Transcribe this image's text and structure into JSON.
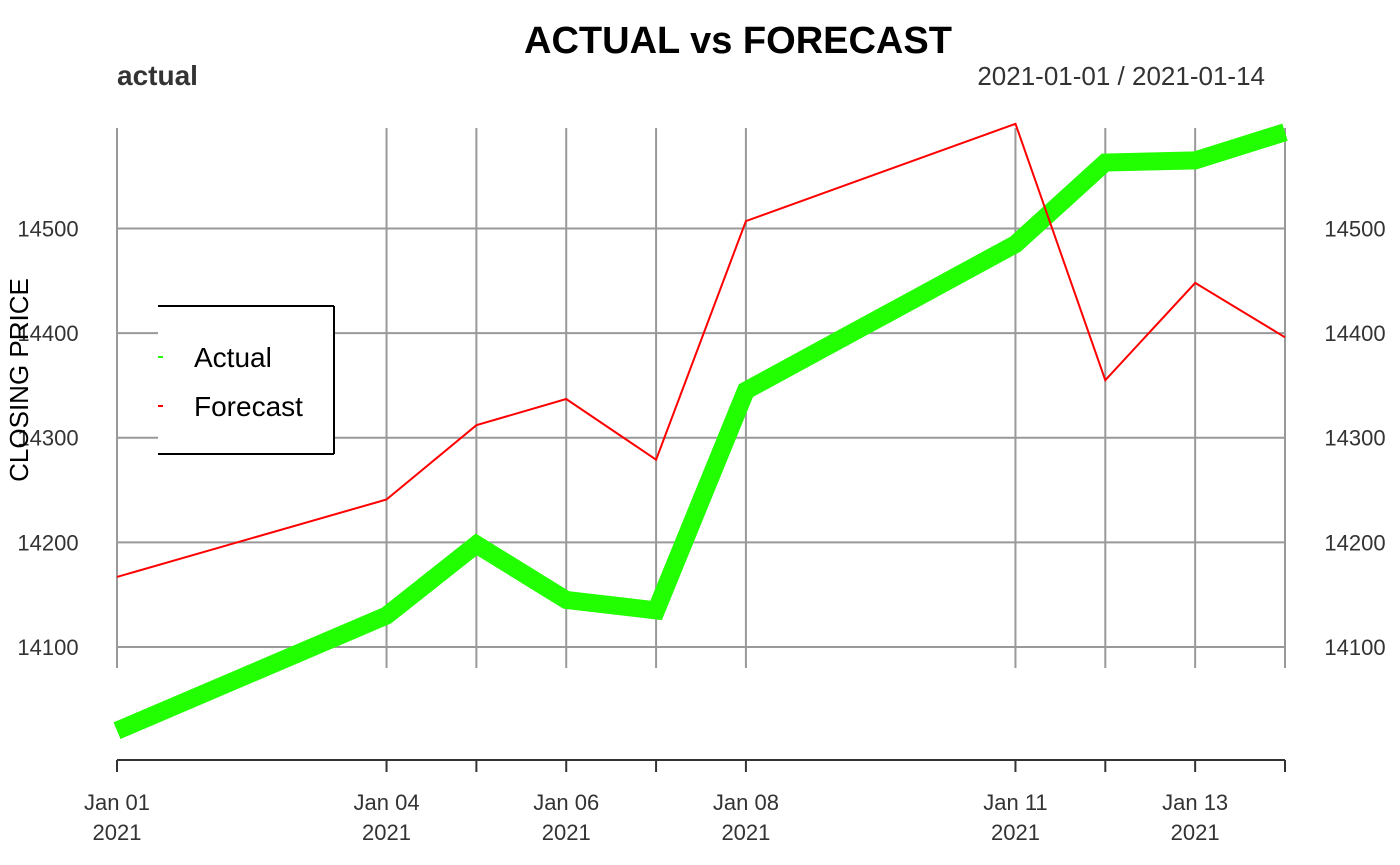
{
  "chart_data": {
    "type": "line",
    "title": "ACTUAL vs FORECAST",
    "subtitle_left": "actual",
    "subtitle_right": "2021-01-01 / 2021-01-14",
    "ylabel": "CLOSING PRICE",
    "xlabel": "",
    "x": [
      "2021-01-01",
      "2021-01-04",
      "2021-01-05",
      "2021-01-06",
      "2021-01-07",
      "2021-01-08",
      "2021-01-11",
      "2021-01-12",
      "2021-01-13",
      "2021-01-14"
    ],
    "x_tick_labels": [
      {
        "date": "2021-01-01",
        "line1": "Jan 01",
        "line2": "2021"
      },
      {
        "date": "2021-01-04",
        "line1": "Jan 04",
        "line2": "2021"
      },
      {
        "date": "2021-01-06",
        "line1": "Jan 06",
        "line2": "2021"
      },
      {
        "date": "2021-01-08",
        "line1": "Jan 08",
        "line2": "2021"
      },
      {
        "date": "2021-01-11",
        "line1": "Jan 11",
        "line2": "2021"
      },
      {
        "date": "2021-01-13",
        "line1": "Jan 13",
        "line2": "2021"
      }
    ],
    "y_ticks": [
      14100,
      14200,
      14300,
      14400,
      14500
    ],
    "ylim": [
      13992,
      14596
    ],
    "grid": true,
    "legend_position": "left",
    "series": [
      {
        "name": "Actual",
        "color": "#22ff00",
        "values": [
          14020,
          14130,
          14198,
          14145,
          14135,
          14345,
          14485,
          14563,
          14565,
          14592
        ]
      },
      {
        "name": "Forecast",
        "color": "#ff0000",
        "values": [
          14167,
          14241,
          14312,
          14337,
          14279,
          14507,
          14600,
          14355,
          14448,
          14396
        ]
      }
    ]
  }
}
